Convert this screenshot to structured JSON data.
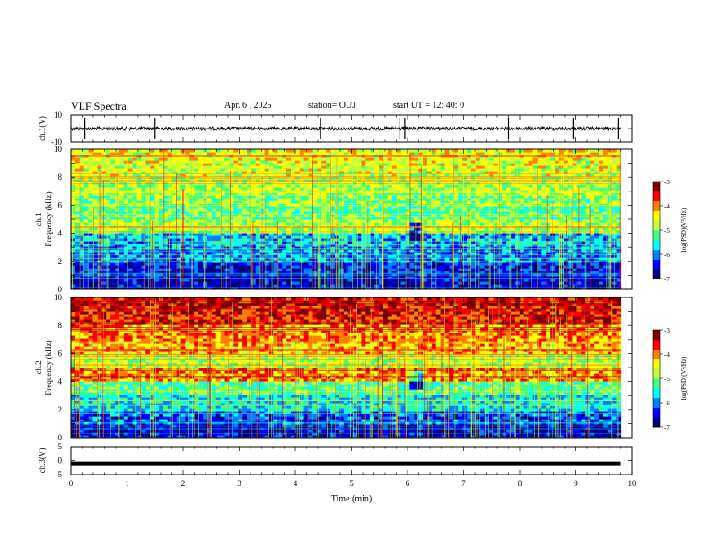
{
  "header": {
    "title": "VLF Spectra",
    "date": "Apr. 6 , 2025",
    "station": "station= OUJ",
    "start": "start UT = 12: 40: 0"
  },
  "colors": {
    "waveform": "#000000",
    "colormap": [
      "#00007f",
      "#0000ff",
      "#0080ff",
      "#00ffff",
      "#40ff80",
      "#c0ff40",
      "#ffff00",
      "#ff8000",
      "#ff0000",
      "#7f0000"
    ]
  },
  "chart_data": [
    {
      "type": "line",
      "ylabel": "ch.1(V)",
      "ylim": [
        -10,
        10
      ],
      "yticks": [
        "10",
        "-10"
      ],
      "baseline": 0,
      "spike_times_min": [
        0.25,
        1.5,
        4.45,
        5.85,
        5.95,
        7.8,
        8.95,
        9.75
      ]
    },
    {
      "type": "heatmap",
      "ylabel": "ch.1",
      "ylabel2": "Frequency (kHz)",
      "ylim": [
        0,
        10
      ],
      "yticks": [
        "0",
        "2",
        "4",
        "6",
        "8",
        "10"
      ],
      "colorbar": {
        "label": "log(PSD)(V²/Hz)",
        "ticks": [
          "-3",
          "-4",
          "-5",
          "-6",
          "-7"
        ],
        "range": [
          -7,
          -3
        ]
      },
      "band_intensity_by_khz": [
        0.1,
        0.15,
        0.25,
        0.3,
        0.55,
        0.45,
        0.5,
        0.55,
        0.6,
        0.62
      ],
      "gap_time_min": 6.1
    },
    {
      "type": "heatmap",
      "ylabel": "ch.2",
      "ylabel2": "Frequency (kHz)",
      "ylim": [
        0,
        10
      ],
      "yticks": [
        "0",
        "2",
        "4",
        "6",
        "8",
        "10"
      ],
      "colorbar": {
        "label": "log(PSD)(V²/Hz)",
        "ticks": [
          "-3",
          "-4",
          "-5",
          "-6",
          "-7"
        ],
        "range": [
          -7,
          -3
        ]
      },
      "band_intensity_by_khz": [
        0.1,
        0.2,
        0.35,
        0.45,
        0.75,
        0.55,
        0.7,
        0.75,
        0.85,
        0.88
      ],
      "gap_time_min": 6.1
    },
    {
      "type": "line",
      "ylabel": "ch.3(V)",
      "ylim": [
        -5,
        5
      ],
      "yticks": [
        "5",
        "0",
        "-5"
      ],
      "baseline": -1,
      "xlabel": "Time (min)",
      "xlim": [
        0,
        10
      ],
      "xticks": [
        "0",
        "1",
        "2",
        "3",
        "4",
        "5",
        "6",
        "7",
        "8",
        "9",
        "10"
      ],
      "data_end_min": 9.8
    }
  ]
}
